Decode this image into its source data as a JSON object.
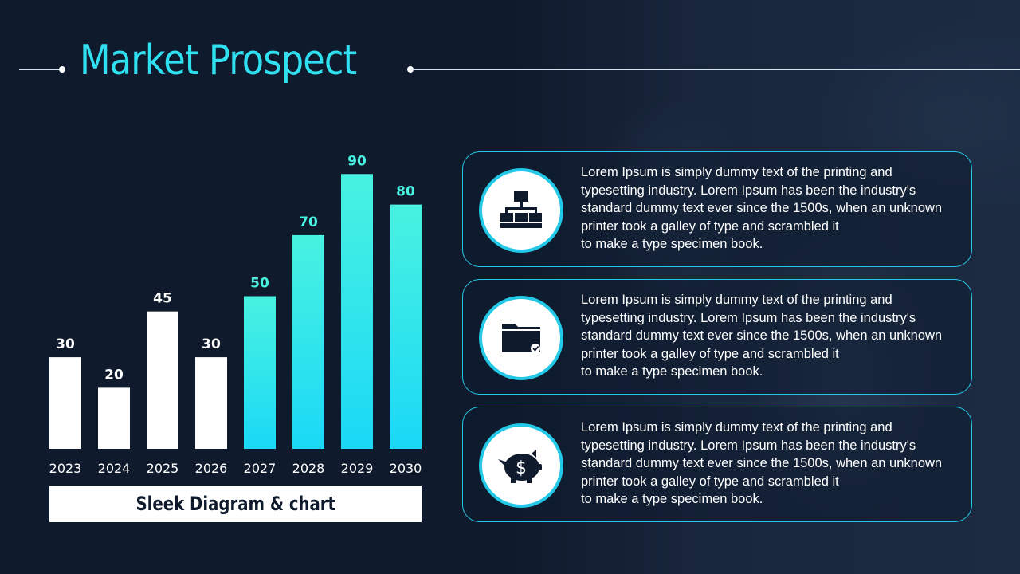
{
  "title": "Market Prospect",
  "caption": "Sleek Diagram & chart",
  "colors": {
    "accent": "#2ee0f0",
    "bar_white": "#ffffff",
    "bar_gradient_top": "#48f2e0",
    "bar_gradient_bottom": "#1ad8f6",
    "background": "#0f1a2c"
  },
  "chart_data": {
    "type": "bar",
    "categories": [
      "2023",
      "2024",
      "2025",
      "2026",
      "2027",
      "2028",
      "2029",
      "2030"
    ],
    "values": [
      30,
      20,
      45,
      30,
      50,
      70,
      90,
      80
    ],
    "highlight_from_index": 4,
    "ylim": [
      0,
      100
    ],
    "grid": false,
    "title": "",
    "xlabel": "",
    "ylabel": ""
  },
  "cards": [
    {
      "icon": "hierarchy-icon",
      "text": "Lorem Ipsum is simply dummy text of the printing and\ntypesetting industry.  Lorem Ipsum has been the industry's\nstandard dummy text ever since the 1500s, when an unknown\nprinter took a galley of type and scrambled it\nto make a type specimen book."
    },
    {
      "icon": "folder-check-icon",
      "text": "Lorem Ipsum is simply dummy text of the printing and\ntypesetting industry.  Lorem Ipsum has been the industry's\nstandard dummy text ever since the 1500s, when an unknown\nprinter took a galley of type and scrambled it\nto make a type specimen book."
    },
    {
      "icon": "piggy-bank-dollar-icon",
      "text": "Lorem Ipsum is simply dummy text of the printing and\ntypesetting industry.  Lorem Ipsum has been the industry's\nstandard dummy text ever since the 1500s, when an unknown\nprinter took a galley of type and scrambled it\nto make a type specimen book."
    }
  ]
}
